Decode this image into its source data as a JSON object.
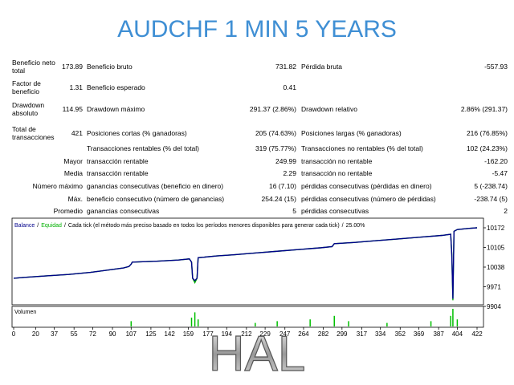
{
  "title": "AUDCHF 1 MIN 5 YEARS",
  "table": {
    "rows": [
      {
        "c1": "Beneficio neto total",
        "v1": "173.89",
        "c2": "Beneficio bruto",
        "v2": "731.82",
        "c3": "Pérdida bruta",
        "v3": "-557.93"
      },
      {
        "c1": "Factor de beneficio",
        "v1": "1.31",
        "c2": "Beneficio esperado",
        "v2": "0.41"
      },
      {
        "c1": "Drawdown absoluto",
        "v1": "114.95",
        "c2": "Drawdown máximo",
        "v2": "291.37 (2.86%)",
        "c3": "Drawdown relativo",
        "v3": "2.86% (291.37)"
      },
      {
        "c1": "Total de transacciones",
        "v1": "421",
        "c2": "Posiciones cortas (% ganadoras)",
        "v2": "205 (74.63%)",
        "c3": "Posiciones largas (% ganadoras)",
        "v3": "216 (76.85%)"
      },
      {
        "c2": "Transacciones rentables (% del total)",
        "v2": "319 (75.77%)",
        "c3": "Transacciones no rentables (% del total)",
        "v3": "102 (24.23%)"
      },
      {
        "c1": "Mayor",
        "c2": "transacción rentable",
        "v2": "249.99",
        "c3": "transacción no rentable",
        "v3": "-162.20"
      },
      {
        "c1": "Media",
        "c2": "transacción rentable",
        "v2": "2.29",
        "c3": "transacción no rentable",
        "v3": "-5.47"
      },
      {
        "c1": "Número máximo",
        "c2": "ganancias consecutivas (beneficio en dinero)",
        "v2": "16 (7.10)",
        "c3": "pérdidas consecutivas (pérdidas en dinero)",
        "v3": "5 (-238.74)"
      },
      {
        "c1": "Máx.",
        "c2": "beneficio consecutivo (número de ganancias)",
        "v2": "254.24 (15)",
        "c3": "pérdidas consecutivas (número de pérdidas)",
        "v3": "-238.74 (5)"
      },
      {
        "c1": "Promedio",
        "c2": "ganancias consecutivas",
        "v2": "5",
        "c3": "pérdidas consecutivas",
        "v3": "2"
      }
    ]
  },
  "chart_data": {
    "type": "line",
    "legend_separator": "/",
    "note": "Cada tick (el método más preciso basado en todos los períodos menores disponibles para generar cada tick)",
    "percent": "25.00%",
    "volume_label": "Volumen",
    "x": [
      0,
      10,
      30,
      50,
      70,
      90,
      100,
      105,
      107,
      108,
      130,
      150,
      160,
      162,
      163,
      165,
      167,
      168,
      185,
      200,
      220,
      240,
      260,
      280,
      290,
      292,
      310,
      330,
      350,
      370,
      390,
      398,
      399,
      400,
      401,
      404,
      415,
      422
    ],
    "series": [
      {
        "name": "Equidad",
        "color": "#00b000",
        "values": [
          10000,
          10003,
          10008,
          10013,
          10020,
          10030,
          10035,
          10040,
          10048,
          10055,
          10058,
          10062,
          10066,
          10055,
          10000,
          9985,
          10000,
          10070,
          10076,
          10080,
          10086,
          10092,
          10098,
          10104,
          10108,
          10118,
          10122,
          10128,
          10134,
          10140,
          10146,
          10150,
          10080,
          9925,
          10160,
          10166,
          10170,
          10172
        ]
      },
      {
        "name": "Balance",
        "color": "#00008b",
        "values": [
          10000,
          10003,
          10008,
          10013,
          10020,
          10030,
          10035,
          10040,
          10048,
          10055,
          10058,
          10062,
          10066,
          10055,
          10000,
          9992,
          10000,
          10070,
          10076,
          10080,
          10086,
          10092,
          10098,
          10104,
          10108,
          10118,
          10122,
          10128,
          10134,
          10140,
          10146,
          10150,
          10080,
          9930,
          10160,
          10166,
          10170,
          10172
        ]
      }
    ],
    "volume": {
      "color": "#00c000",
      "x": [
        107,
        162,
        165,
        168,
        220,
        240,
        270,
        292,
        305,
        340,
        380,
        398,
        400,
        404
      ],
      "values": [
        3,
        5,
        8,
        4,
        2,
        3,
        4,
        6,
        3,
        2,
        3,
        6,
        10,
        4
      ]
    },
    "xlim": [
      0,
      422
    ],
    "xticks": [
      0,
      20,
      37,
      55,
      72,
      90,
      107,
      125,
      142,
      159,
      177,
      194,
      212,
      229,
      247,
      264,
      282,
      299,
      317,
      334,
      352,
      369,
      387,
      404,
      422
    ],
    "ylim": [
      9904,
      10172
    ],
    "yticks": [
      9904,
      9971,
      10038,
      10105,
      10172
    ]
  },
  "footer": "HAL"
}
